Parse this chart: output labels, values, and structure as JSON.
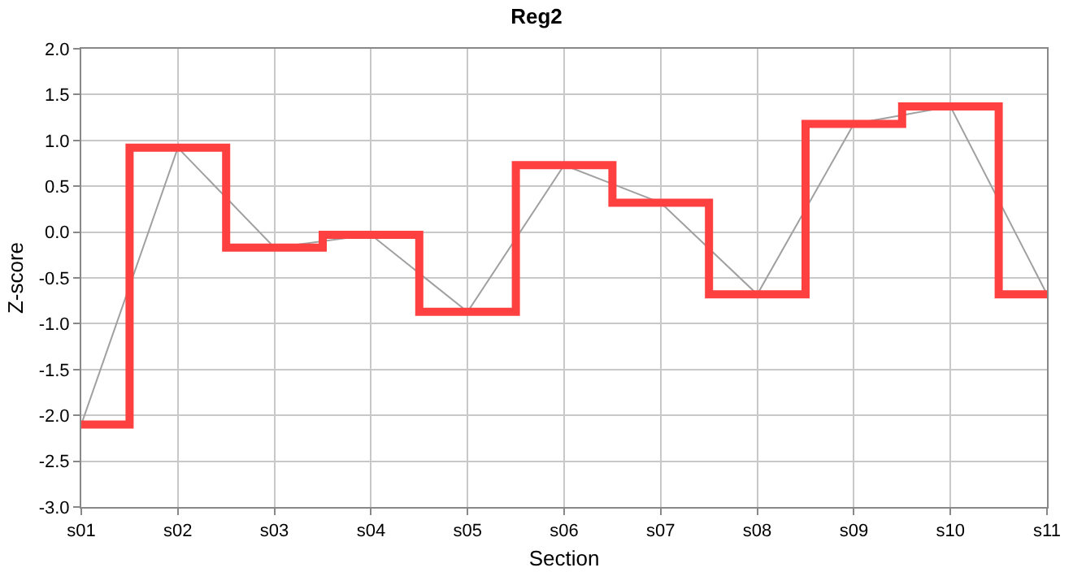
{
  "chart_data": {
    "type": "step",
    "title": "Reg2",
    "xlabel": "Section",
    "ylabel": "Z-score",
    "categories": [
      "s01",
      "s02",
      "s03",
      "s04",
      "s05",
      "s06",
      "s07",
      "s08",
      "s09",
      "s10",
      "s11"
    ],
    "series": [
      {
        "color": "#ff4040",
        "values": [
          -2.1,
          0.92,
          -0.17,
          -0.03,
          -0.87,
          0.73,
          0.32,
          -0.68,
          1.18,
          1.37,
          -0.68
        ]
      },
      {
        "type": "line",
        "color": "#a0a0a0",
        "values": [
          -2.1,
          0.92,
          -0.17,
          -0.03,
          -0.87,
          0.73,
          0.32,
          -0.68,
          1.18,
          1.37,
          -0.68
        ]
      }
    ],
    "ylim": [
      -3,
      2
    ],
    "yticks": [
      {
        "value": -3,
        "label": "-3.0"
      },
      {
        "value": -2.5,
        "label": "-2.5"
      },
      {
        "value": -2,
        "label": "-2.0"
      },
      {
        "value": -1.5,
        "label": "-1.5"
      },
      {
        "value": -1,
        "label": "-1.0"
      },
      {
        "value": -0.5,
        "label": "-0.5"
      },
      {
        "value": 0,
        "label": "0.0"
      },
      {
        "value": 0.5,
        "label": "0.5"
      },
      {
        "value": 1,
        "label": "1.0"
      },
      {
        "value": 1.5,
        "label": "1.5"
      },
      {
        "value": 2,
        "label": "2.0"
      }
    ],
    "grid": true,
    "marker": "none",
    "line_style": "solid"
  }
}
